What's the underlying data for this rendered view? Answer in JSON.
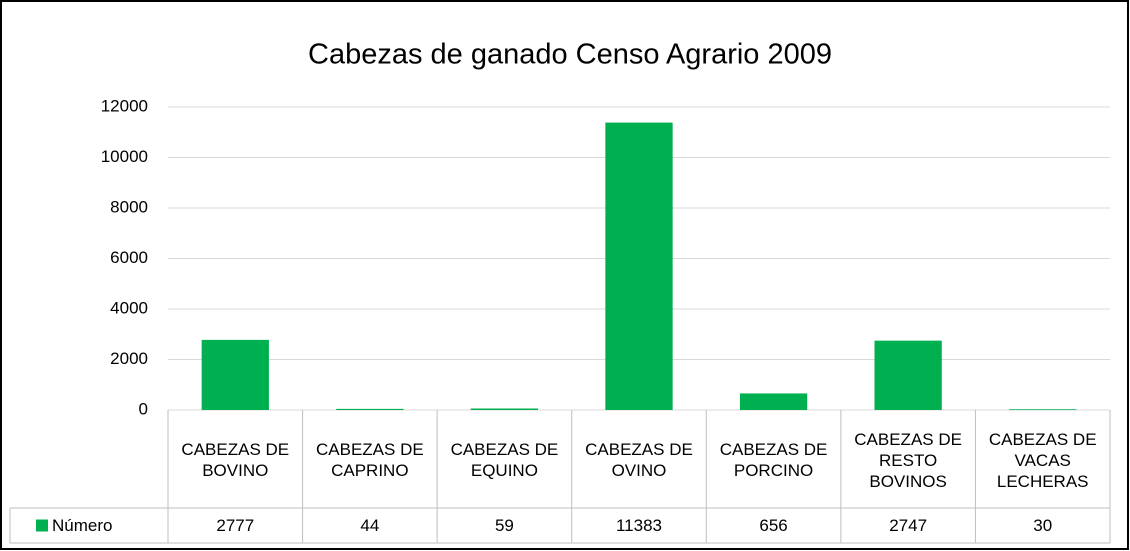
{
  "chart_data": {
    "type": "bar",
    "title": "Cabezas de ganado Censo Agrario 2009",
    "categories": [
      "CABEZAS DE\nBOVINO",
      "CABEZAS DE\nCAPRINO",
      "CABEZAS DE\nEQUINO",
      "CABEZAS DE\nOVINO",
      "CABEZAS DE\nPORCINO",
      "CABEZAS DE\nRESTO\nBOVINOS",
      "CABEZAS DE\nVACAS\nLECHERAS"
    ],
    "series": [
      {
        "name": "Número",
        "color": "#00b050",
        "values": [
          2777,
          44,
          59,
          11383,
          656,
          2747,
          30
        ]
      }
    ],
    "ylim": [
      0,
      12000
    ],
    "yticks": [
      0,
      2000,
      4000,
      6000,
      8000,
      10000,
      12000
    ],
    "grid": true,
    "data_table": true
  }
}
